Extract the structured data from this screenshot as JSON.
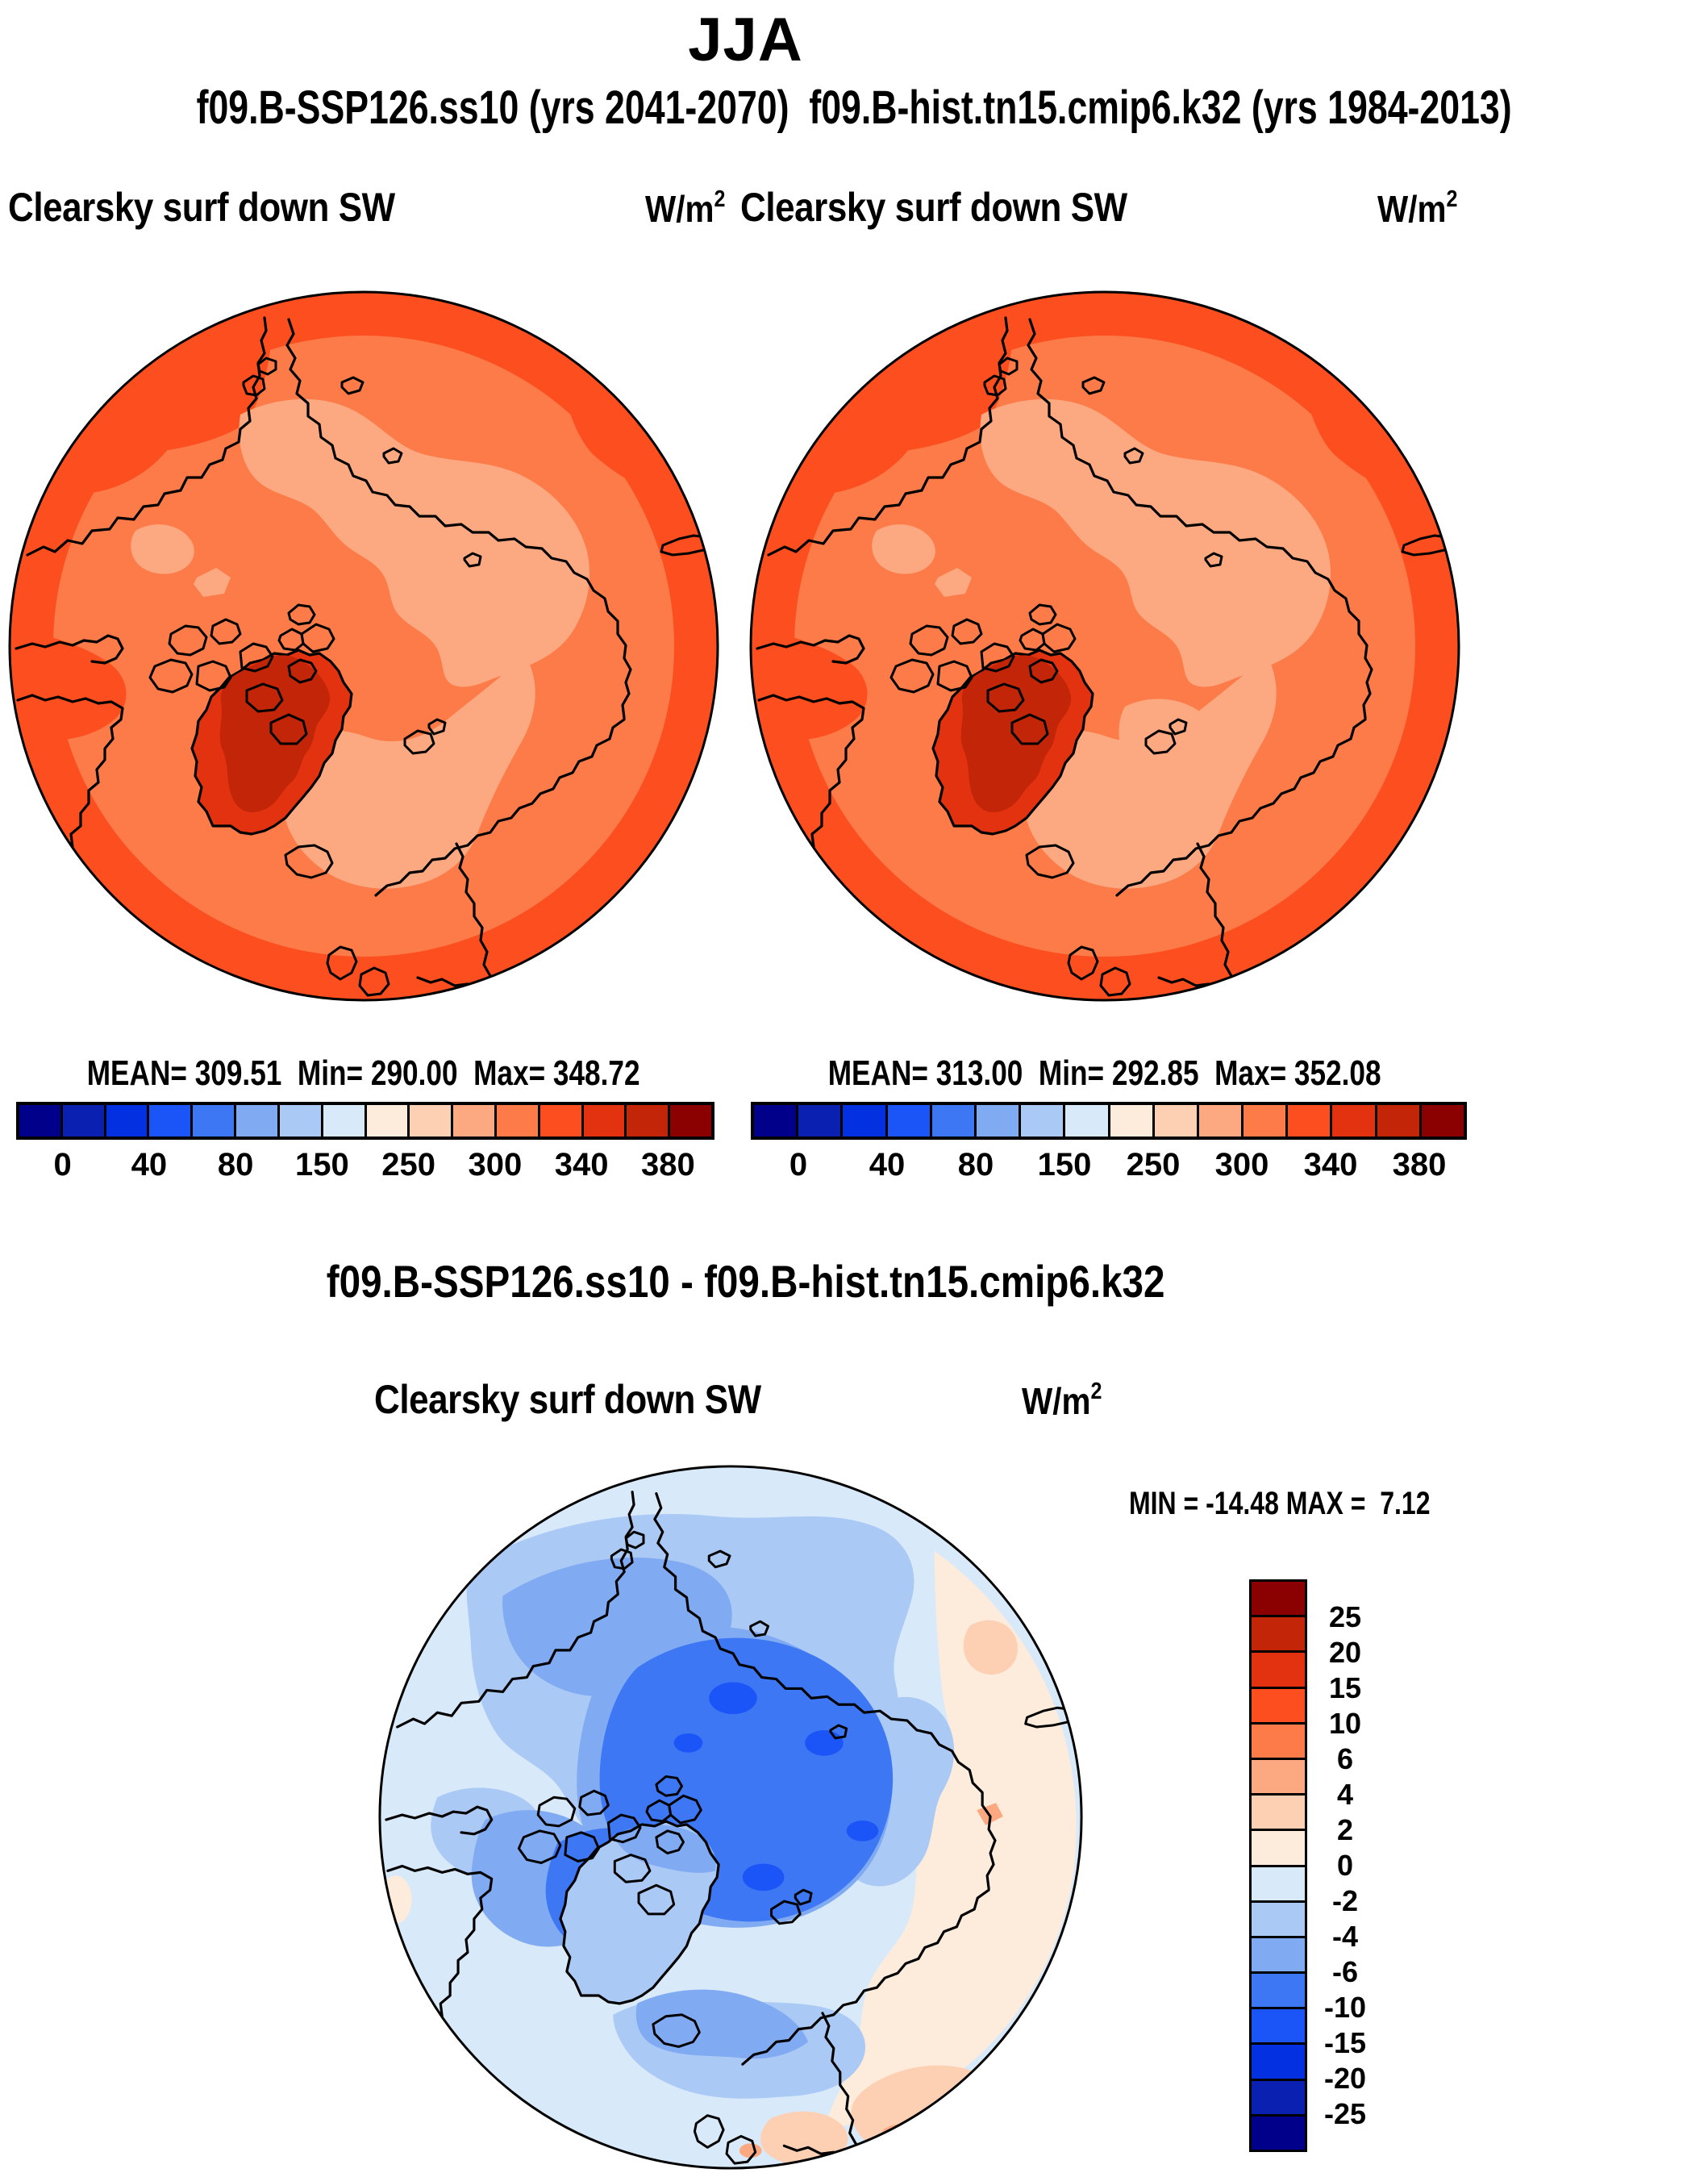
{
  "title": "JJA",
  "subtitle": "f09.B-SSP126.ss10 (yrs 2041-2070)  f09.B-hist.tn15.cmip6.k32 (yrs 1984-2013)",
  "panels": {
    "left": {
      "variable": "Clearsky surf down SW",
      "units_base": "W/m",
      "units_sup": "2",
      "stats": "MEAN= 309.51  Min= 290.00  Max= 348.72"
    },
    "right": {
      "variable": "Clearsky surf down SW",
      "units_base": "W/m",
      "units_sup": "2",
      "stats": "MEAN= 313.00  Min= 292.85  Max= 352.08"
    },
    "diff": {
      "title": "f09.B-SSP126.ss10 - f09.B-hist.tn15.cmip6.k32",
      "variable": "Clearsky surf down SW",
      "units_base": "W/m",
      "units_sup": "2",
      "minmax": "MIN = -14.48 MAX =  7.12"
    }
  },
  "colorbar": {
    "palette": [
      "#00008B",
      "#0A20B0",
      "#0331E1",
      "#1C55F7",
      "#3D77F3",
      "#80AAF1",
      "#ABC9F5",
      "#D8E9FA",
      "#FDEBDC",
      "#FDCFB3",
      "#FCA981",
      "#FC7B48",
      "#FC4E1E",
      "#E23210",
      "#C22508",
      "#8B0000"
    ],
    "top_tick_labels": [
      "0",
      "40",
      "80",
      "150",
      "250",
      "300",
      "340",
      "380"
    ],
    "diff_tick_labels": [
      "25",
      "20",
      "15",
      "10",
      "6",
      "4",
      "2",
      "0",
      "-2",
      "-4",
      "-6",
      "-10",
      "-15",
      "-20",
      "-25"
    ]
  },
  "chart_data": [
    {
      "type": "heatmap",
      "panel": "top-left",
      "projection": "north-polar stereographic map",
      "season": "JJA",
      "dataset": "f09.B-SSP126.ss10 (yrs 2041-2070)",
      "variable": "Clearsky surf down SW",
      "units": "W/m2",
      "mean": 309.51,
      "min": 290.0,
      "max": 348.72,
      "colorbar_ticks": [
        0,
        40,
        80,
        150,
        250,
        300,
        340,
        380
      ],
      "legend_position": "bottom"
    },
    {
      "type": "heatmap",
      "panel": "top-right",
      "projection": "north-polar stereographic map",
      "season": "JJA",
      "dataset": "f09.B-hist.tn15.cmip6.k32 (yrs 1984-2013)",
      "variable": "Clearsky surf down SW",
      "units": "W/m2",
      "mean": 313.0,
      "min": 292.85,
      "max": 352.08,
      "colorbar_ticks": [
        0,
        40,
        80,
        150,
        250,
        300,
        340,
        380
      ],
      "legend_position": "bottom"
    },
    {
      "type": "heatmap",
      "panel": "bottom-difference",
      "projection": "north-polar stereographic map",
      "title": "f09.B-SSP126.ss10 - f09.B-hist.tn15.cmip6.k32",
      "variable": "Clearsky surf down SW",
      "units": "W/m2",
      "min": -14.48,
      "max": 7.12,
      "colorbar_ticks": [
        25,
        20,
        15,
        10,
        6,
        4,
        2,
        0,
        -2,
        -4,
        -6,
        -10,
        -15,
        -20,
        -25
      ],
      "legend_position": "right"
    }
  ]
}
